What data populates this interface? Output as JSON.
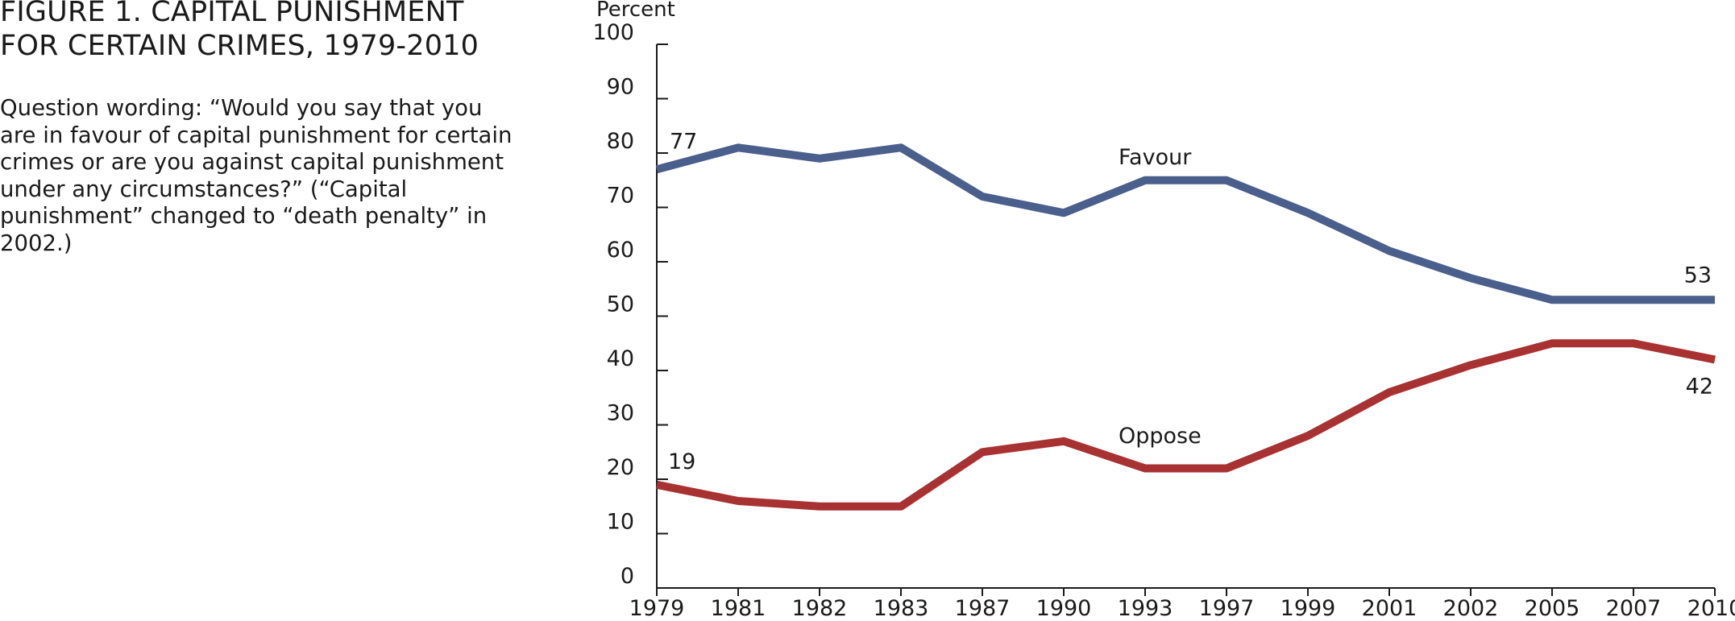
{
  "figure": {
    "title_line1": "FIGURE 1. CAPITAL PUNISHMENT",
    "title_line2": "FOR CERTAIN CRIMES, 1979-2010",
    "question_wording": "Question wording: “Would you say that you are in favour of capital punishment for certain crimes or are you against capital punishment under any circumstances?” (“Capital punishment” changed to “death penalty” in 2002.)"
  },
  "chart_data": {
    "type": "line",
    "title": "",
    "xlabel": "",
    "ylabel": "Percent",
    "ylim": [
      0,
      100
    ],
    "yticks": [
      0,
      10,
      20,
      30,
      40,
      50,
      60,
      70,
      80,
      90,
      100
    ],
    "grid": false,
    "categories": [
      "1979",
      "1981",
      "1982",
      "1983",
      "1987",
      "1990",
      "1993",
      "1997",
      "1999",
      "2001",
      "2002",
      "2005",
      "2007",
      "2010"
    ],
    "series": [
      {
        "name": "Favour",
        "color": "#4a5f8c",
        "values": [
          77,
          81,
          79,
          81,
          72,
          69,
          75,
          75,
          69,
          62,
          57,
          53,
          53,
          53
        ]
      },
      {
        "name": "Oppose",
        "color": "#a83232",
        "values": [
          19,
          16,
          15,
          15,
          25,
          27,
          22,
          22,
          28,
          36,
          41,
          45,
          45,
          42
        ]
      }
    ],
    "data_labels": [
      {
        "series": "Favour",
        "index": 0,
        "text": "77"
      },
      {
        "series": "Favour",
        "index": 13,
        "text": "53"
      },
      {
        "series": "Oppose",
        "index": 0,
        "text": "19"
      },
      {
        "series": "Oppose",
        "index": 13,
        "text": "42"
      }
    ]
  }
}
